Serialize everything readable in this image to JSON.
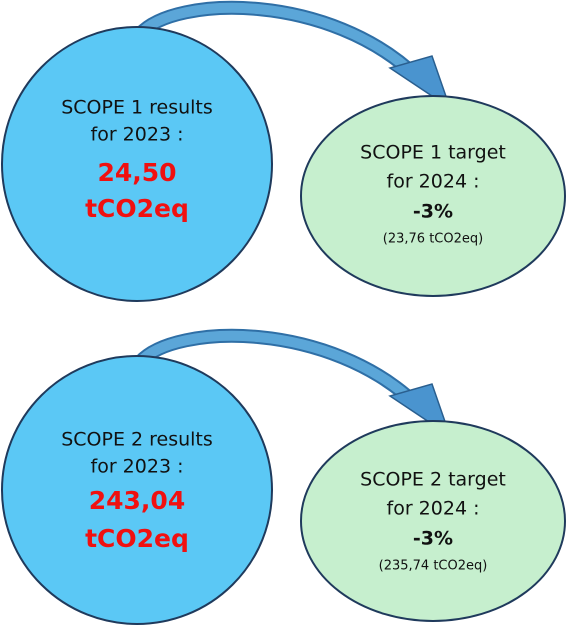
{
  "blocks": [
    {
      "result": {
        "line1": "SCOPE 1 results",
        "line2": "for 2023 :",
        "value": "24,50",
        "unit": "tCO2eq"
      },
      "target": {
        "line1": "SCOPE 1 target",
        "line2": "for 2024 :",
        "change": "-3%",
        "note": "(23,76 tCO2eq)"
      }
    },
    {
      "result": {
        "line1": "SCOPE 2 results",
        "line2": "for 2023 :",
        "value": "243,04",
        "unit": "tCO2eq"
      },
      "target": {
        "line1": "SCOPE 2 target",
        "line2": "for 2024 :",
        "change": "-3%",
        "note": "(235,74 tCO2eq)"
      }
    }
  ]
}
